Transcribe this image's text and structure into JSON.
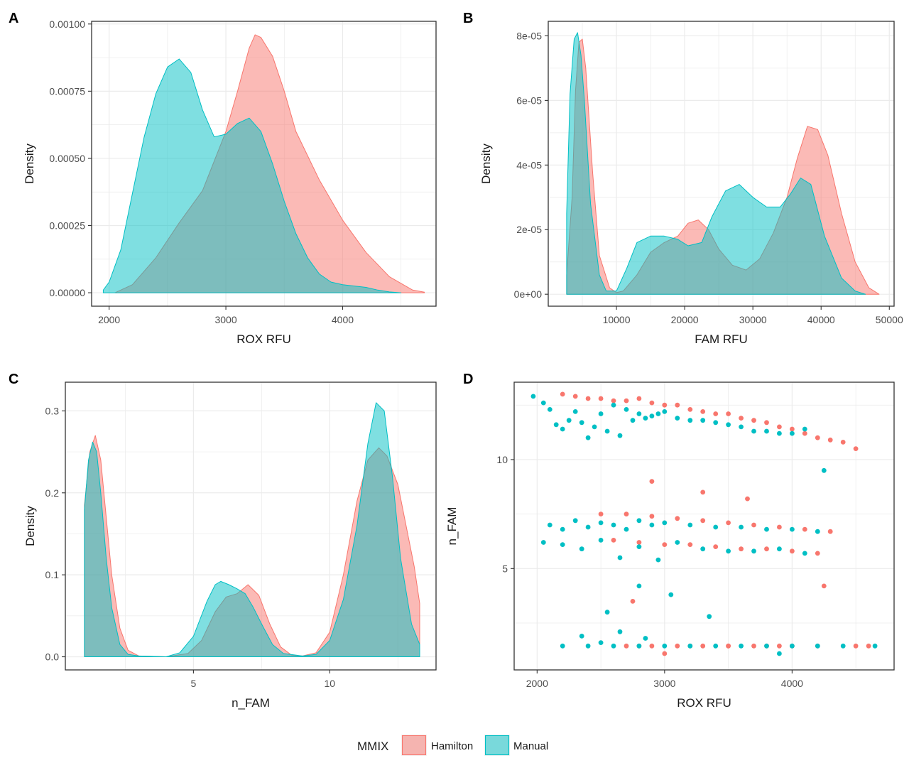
{
  "legend": {
    "title": "MMIX",
    "items": [
      {
        "label": "Hamilton",
        "fill": "#F8766D",
        "stroke": "#F8766D"
      },
      {
        "label": "Manual",
        "fill": "#00BFC4",
        "stroke": "#00BFC4"
      }
    ]
  },
  "chart_data": [
    {
      "panel": "A",
      "type": "area",
      "xlabel": "ROX RFU",
      "ylabel": "Density",
      "xlim": [
        1850,
        4800
      ],
      "ylim": [
        -5e-05,
        0.00101
      ],
      "xticks": [
        2000,
        3000,
        4000
      ],
      "xtick_labels": [
        "2000",
        "3000",
        "4000"
      ],
      "yticks": [
        0,
        0.00025,
        0.0005,
        0.00075,
        0.001
      ],
      "ytick_labels": [
        "0.00000",
        "0.00025",
        "0.00050",
        "0.00075",
        "0.00100"
      ],
      "grid": true,
      "series": [
        {
          "name": "Hamilton",
          "x": [
            2050,
            2200,
            2400,
            2600,
            2800,
            3000,
            3100,
            3200,
            3250,
            3300,
            3400,
            3500,
            3600,
            3800,
            4000,
            4200,
            4400,
            4600,
            4700
          ],
          "y": [
            0,
            3e-05,
            0.00013,
            0.00026,
            0.00038,
            0.0006,
            0.00075,
            0.00091,
            0.00096,
            0.00095,
            0.00088,
            0.00075,
            0.0006,
            0.00042,
            0.00027,
            0.00015,
            6e-05,
            1e-05,
            2e-06
          ]
        },
        {
          "name": "Manual",
          "x": [
            1950,
            2000,
            2100,
            2200,
            2300,
            2400,
            2500,
            2600,
            2700,
            2800,
            2900,
            3000,
            3100,
            3200,
            3300,
            3400,
            3500,
            3600,
            3700,
            3800,
            3900,
            4000,
            4100,
            4200,
            4300,
            4400,
            4500
          ],
          "y": [
            1e-05,
            4e-05,
            0.00016,
            0.00037,
            0.00058,
            0.00074,
            0.00084,
            0.00087,
            0.00082,
            0.00068,
            0.00058,
            0.00059,
            0.00063,
            0.00065,
            0.0006,
            0.00048,
            0.00034,
            0.00022,
            0.00013,
            7e-05,
            4e-05,
            3e-05,
            2.5e-05,
            2e-05,
            1e-05,
            3e-06,
            0
          ]
        }
      ]
    },
    {
      "panel": "B",
      "type": "area",
      "xlabel": "FAM RFU",
      "ylabel": "Density",
      "xlim": [
        0,
        50700
      ],
      "ylim": [
        -3.7e-06,
        8.45e-05
      ],
      "xticks": [
        10000,
        20000,
        30000,
        40000,
        50000
      ],
      "xtick_labels": [
        "10000",
        "20000",
        "30000",
        "40000",
        "50000"
      ],
      "yticks": [
        0,
        2e-05,
        4e-05,
        6e-05,
        8e-05
      ],
      "ytick_labels": [
        "0e+00",
        "2e-05",
        "4e-05",
        "6e-05",
        "8e-05"
      ],
      "grid": true,
      "series": [
        {
          "name": "Hamilton",
          "x": [
            2700,
            3500,
            4000,
            4500,
            5000,
            5500,
            6500,
            7500,
            9000,
            10000,
            11000,
            13000,
            15000,
            17000,
            19000,
            20500,
            22000,
            23500,
            25000,
            27000,
            29000,
            31000,
            33000,
            35000,
            36500,
            38000,
            39500,
            41000,
            43000,
            45000,
            47000,
            48500
          ],
          "y": [
            6e-06,
            3e-05,
            6.3e-05,
            7.8e-05,
            7.9e-05,
            7e-05,
            3.8e-05,
            1.2e-05,
            2e-06,
            5e-07,
            1e-06,
            6e-06,
            1.3e-05,
            1.6e-05,
            1.8e-05,
            2.2e-05,
            2.3e-05,
            2e-05,
            1.4e-05,
            9e-06,
            7.5e-06,
            1.1e-05,
            1.9e-05,
            3e-05,
            4.2e-05,
            5.2e-05,
            5.1e-05,
            4.3e-05,
            2.5e-05,
            1e-05,
            2e-06,
            0
          ]
        },
        {
          "name": "Manual",
          "x": [
            2700,
            3200,
            3800,
            4300,
            4800,
            5300,
            6200,
            7500,
            8500,
            10000,
            11500,
            13000,
            15000,
            17000,
            19000,
            20500,
            22500,
            24000,
            26000,
            28000,
            30000,
            32000,
            34000,
            35500,
            37000,
            38500,
            40500,
            43000,
            45000,
            46500
          ],
          "y": [
            2.5e-05,
            6.2e-05,
            7.9e-05,
            8.1e-05,
            7.4e-05,
            6e-05,
            2.8e-05,
            6e-06,
            1e-06,
            1e-06,
            8e-06,
            1.6e-05,
            1.8e-05,
            1.8e-05,
            1.7e-05,
            1.5e-05,
            1.6e-05,
            2.4e-05,
            3.2e-05,
            3.4e-05,
            3e-05,
            2.7e-05,
            2.7e-05,
            3.1e-05,
            3.6e-05,
            3.4e-05,
            1.8e-05,
            5e-06,
            1e-06,
            0
          ]
        }
      ]
    },
    {
      "panel": "C",
      "type": "area",
      "xlabel": "n_FAM",
      "ylabel": "Density",
      "xlim": [
        0.3,
        13.9
      ],
      "ylim": [
        -0.016,
        0.335
      ],
      "xticks": [
        5,
        10
      ],
      "xtick_labels": [
        "5",
        "10"
      ],
      "yticks": [
        0,
        0.1,
        0.2,
        0.3
      ],
      "ytick_labels": [
        "0.0",
        "0.1",
        "0.2",
        "0.3"
      ],
      "grid": true,
      "series": [
        {
          "name": "Hamilton",
          "x": [
            1,
            1.2,
            1.4,
            1.6,
            1.8,
            2,
            2.3,
            2.6,
            3,
            4,
            4.8,
            5.3,
            5.8,
            6.2,
            6.6,
            7,
            7.4,
            7.8,
            8.2,
            8.6,
            9,
            9.5,
            10,
            10.5,
            11,
            11.4,
            11.8,
            12.1,
            12.5,
            12.8,
            13.1,
            13.3
          ],
          "y": [
            0.185,
            0.25,
            0.27,
            0.24,
            0.17,
            0.1,
            0.035,
            0.008,
            0.001,
            0,
            0.004,
            0.02,
            0.055,
            0.073,
            0.077,
            0.088,
            0.075,
            0.04,
            0.012,
            0.002,
            0.001,
            0.005,
            0.03,
            0.1,
            0.19,
            0.24,
            0.255,
            0.245,
            0.21,
            0.16,
            0.11,
            0.065
          ]
        },
        {
          "name": "Manual",
          "x": [
            1,
            1.15,
            1.3,
            1.45,
            1.6,
            1.8,
            2,
            2.3,
            2.6,
            3,
            4,
            4.5,
            5,
            5.5,
            5.8,
            6,
            6.3,
            6.6,
            6.9,
            7.2,
            7.5,
            7.9,
            8.3,
            9,
            9.5,
            10,
            10.5,
            11,
            11.4,
            11.7,
            12,
            12.3,
            12.6,
            13,
            13.3
          ],
          "y": [
            0.18,
            0.24,
            0.262,
            0.25,
            0.2,
            0.12,
            0.06,
            0.015,
            0.003,
            0.001,
            0,
            0.005,
            0.025,
            0.068,
            0.088,
            0.092,
            0.088,
            0.083,
            0.077,
            0.06,
            0.04,
            0.015,
            0.004,
            0.001,
            0.003,
            0.02,
            0.07,
            0.16,
            0.26,
            0.31,
            0.3,
            0.22,
            0.12,
            0.04,
            0.015
          ]
        }
      ]
    },
    {
      "panel": "D",
      "type": "scatter",
      "xlabel": "ROX RFU",
      "ylabel": "n_FAM",
      "xlim": [
        1820,
        4800
      ],
      "ylim": [
        0.35,
        13.55
      ],
      "xticks": [
        2000,
        3000,
        4000
      ],
      "xtick_labels": [
        "2000",
        "3000",
        "4000"
      ],
      "yticks": [
        5,
        10
      ],
      "ytick_labels": [
        "5",
        "10"
      ],
      "grid": true,
      "series": [
        {
          "name": "Hamilton",
          "x": [
            2200,
            2300,
            2400,
            2500,
            2600,
            2700,
            2800,
            2900,
            3000,
            3100,
            3200,
            3300,
            3400,
            3500,
            3600,
            3700,
            3800,
            3900,
            4000,
            4100,
            4200,
            4300,
            4400,
            4500,
            2500,
            2700,
            2900,
            3100,
            3300,
            3500,
            3700,
            3900,
            4100,
            4300,
            2600,
            2800,
            3000,
            3200,
            3400,
            3600,
            3800,
            4000,
            4200,
            2700,
            2900,
            3100,
            3300,
            3500,
            3700,
            3900,
            2800,
            3200,
            3500,
            3800,
            4000,
            4200,
            4500,
            4600,
            2900,
            3300,
            3650,
            4250,
            2750,
            3000
          ],
          "y": [
            13,
            12.9,
            12.8,
            12.8,
            12.7,
            12.7,
            12.8,
            12.6,
            12.5,
            12.5,
            12.3,
            12.2,
            12.1,
            12.1,
            11.9,
            11.8,
            11.7,
            11.5,
            11.4,
            11.2,
            11,
            10.9,
            10.8,
            10.5,
            7.5,
            7.5,
            7.4,
            7.3,
            7.2,
            7.1,
            7.0,
            6.9,
            6.8,
            6.7,
            6.3,
            6.2,
            6.1,
            6.1,
            6.0,
            5.9,
            5.9,
            5.8,
            5.7,
            1.45,
            1.45,
            1.45,
            1.45,
            1.45,
            1.45,
            1.45,
            1.45,
            1.45,
            1.45,
            1.45,
            1.45,
            1.45,
            1.45,
            1.45,
            9,
            8.5,
            8.2,
            4.2,
            3.5,
            1.1
          ]
        },
        {
          "name": "Manual",
          "x": [
            1970,
            2050,
            2100,
            2150,
            2200,
            2250,
            2300,
            2350,
            2400,
            2450,
            2500,
            2550,
            2600,
            2650,
            2700,
            2750,
            2800,
            2850,
            2900,
            2950,
            3000,
            3100,
            3200,
            3300,
            3400,
            3500,
            3600,
            3700,
            3800,
            3900,
            4000,
            4100,
            2100,
            2200,
            2300,
            2400,
            2500,
            2600,
            2700,
            2800,
            2900,
            3000,
            3200,
            3400,
            3600,
            3800,
            4000,
            4200,
            2050,
            2200,
            2350,
            2500,
            2650,
            2800,
            2950,
            3100,
            3300,
            3500,
            3700,
            3900,
            4100,
            2200,
            2400,
            2600,
            2800,
            3000,
            3200,
            3400,
            3600,
            3800,
            4000,
            4200,
            4400,
            4650,
            2350,
            2500,
            2650,
            2850,
            2550,
            2800,
            3050,
            3350,
            3900,
            4250
          ],
          "y": [
            12.9,
            12.6,
            12.3,
            11.6,
            11.4,
            11.8,
            12.2,
            11.7,
            11.0,
            11.5,
            12.1,
            11.3,
            12.5,
            11.1,
            12.3,
            11.8,
            12.1,
            11.9,
            12.0,
            12.1,
            12.2,
            11.9,
            11.8,
            11.8,
            11.7,
            11.6,
            11.5,
            11.3,
            11.3,
            11.2,
            11.2,
            11.4,
            7.0,
            6.8,
            7.2,
            6.9,
            7.1,
            7.0,
            6.8,
            7.2,
            7.0,
            7.1,
            7.0,
            6.9,
            6.9,
            6.8,
            6.8,
            6.7,
            6.2,
            6.1,
            5.9,
            6.3,
            5.5,
            6.0,
            5.4,
            6.2,
            5.9,
            5.8,
            5.8,
            5.9,
            5.7,
            1.45,
            1.45,
            1.45,
            1.45,
            1.45,
            1.45,
            1.45,
            1.45,
            1.45,
            1.45,
            1.45,
            1.45,
            1.45,
            1.9,
            1.6,
            2.1,
            1.8,
            3,
            4.2,
            3.8,
            2.8,
            1.1,
            9.5
          ]
        }
      ]
    }
  ]
}
